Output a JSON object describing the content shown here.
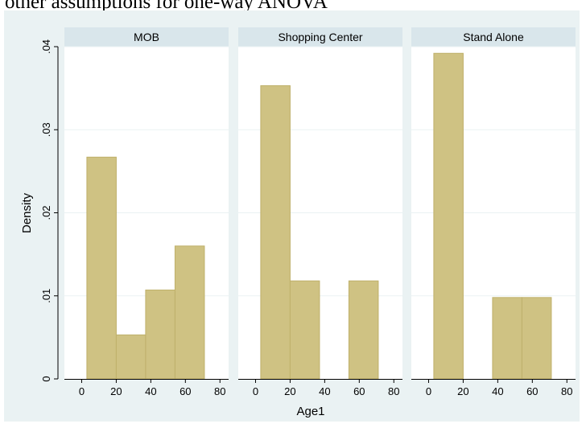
{
  "heading": "other assumptions for one-way ANOVA",
  "colors": {
    "background": "#eaf2f3",
    "panel": "#ffffff",
    "strip": "#d9e6eb",
    "bar_fill": "#cfc283",
    "bar_edge": "#bfb06a",
    "gridline": "#eaf2f3"
  },
  "chart_data": {
    "type": "bar",
    "subtype": "faceted-histogram",
    "xlabel": "Age1",
    "ylabel": "Density",
    "xlim": [
      -10,
      85
    ],
    "ylim": [
      0,
      0.04
    ],
    "x_ticks": [
      0,
      20,
      40,
      60,
      80
    ],
    "x_tick_labels": [
      "0",
      "20",
      "40",
      "60",
      "80"
    ],
    "y_ticks": [
      0,
      0.01,
      0.02,
      0.03,
      0.04
    ],
    "y_tick_labels": [
      "0",
      ".01",
      ".02",
      ".03",
      ".04"
    ],
    "grid": true,
    "bin_edges": [
      3,
      20,
      37,
      54,
      71
    ],
    "panels": [
      {
        "name": "MOB",
        "values": [
          0.0267,
          0.0053,
          0.0107,
          0.016
        ]
      },
      {
        "name": "Shopping Center",
        "values": [
          0.0353,
          0.0118,
          0,
          0.0118
        ]
      },
      {
        "name": "Stand Alone",
        "values": [
          0.0392,
          0,
          0.0098,
          0.0098
        ]
      }
    ]
  }
}
